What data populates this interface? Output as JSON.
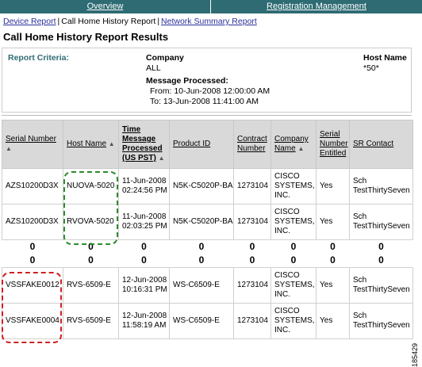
{
  "topnav": {
    "overview": "Overview",
    "registration": "Registration Management"
  },
  "subnav": {
    "device_report": "Device Report",
    "call_home_history": "Call Home History Report",
    "network_summary": "Network Summary Report",
    "sep": "|"
  },
  "page": {
    "title": "Call Home History Report Results"
  },
  "criteria": {
    "label": "Report Criteria:",
    "company_label": "Company",
    "company_value": "ALL",
    "host_label": "Host Name",
    "host_value": "*50*",
    "msg_label": "Message Processed:",
    "msg_from": "From: 10-Jun-2008 12:00:00 AM",
    "msg_to": "To: 13-Jun-2008 11:41:00 AM"
  },
  "table": {
    "headers": {
      "serial": "Serial Number",
      "host": "Host Name",
      "time": "Time Message Processed (US PST)",
      "product": "Product ID",
      "contract": "Contract Number",
      "company": "Company Name",
      "entitled": "Serial Number Entitled",
      "sr": "SR Contact"
    },
    "rows": [
      {
        "serial": "AZS10200D3X",
        "host": "NUOVA-5020",
        "date": "11-Jun-2008",
        "time": "02:24:56 PM",
        "product": "N5K-C5020P-BA",
        "contract": "1273104",
        "company1": "CISCO",
        "company2": "SYSTEMS,",
        "company3": "INC.",
        "entitled": "Yes",
        "sr1": "Sch",
        "sr2": "TestThirtySeven"
      },
      {
        "serial": "AZS10200D3X",
        "host": "RVOVA-5020",
        "date": "11-Jun-2008",
        "time": "02:03:25 PM",
        "product": "N5K-C5020P-BA",
        "contract": "1273104",
        "company1": "CISCO",
        "company2": "SYSTEMS,",
        "company3": "INC.",
        "entitled": "Yes",
        "sr1": "Sch",
        "sr2": "TestThirtySeven"
      },
      {
        "serial": "VSSFAKE0012",
        "host": "RVS-6509-E",
        "date": "12-Jun-2008",
        "time": "10:16:31 PM",
        "product": "WS-C6509-E",
        "contract": "1273104",
        "company1": "CISCO",
        "company2": "SYSTEMS,",
        "company3": "INC.",
        "entitled": "Yes",
        "sr1": "Sch",
        "sr2": "TestThirtySeven"
      },
      {
        "serial": "VSSFAKE0004",
        "host": "RVS-6509-E",
        "date": "12-Jun-2008",
        "time": "11:58:19 AM",
        "product": "WS-C6509-E",
        "contract": "1273104",
        "company1": "CISCO",
        "company2": "SYSTEMS,",
        "company3": "INC.",
        "entitled": "Yes",
        "sr1": "Sch",
        "sr2": "TestThirtySeven"
      }
    ],
    "ellipsis": "0"
  },
  "figure_id": "185429"
}
